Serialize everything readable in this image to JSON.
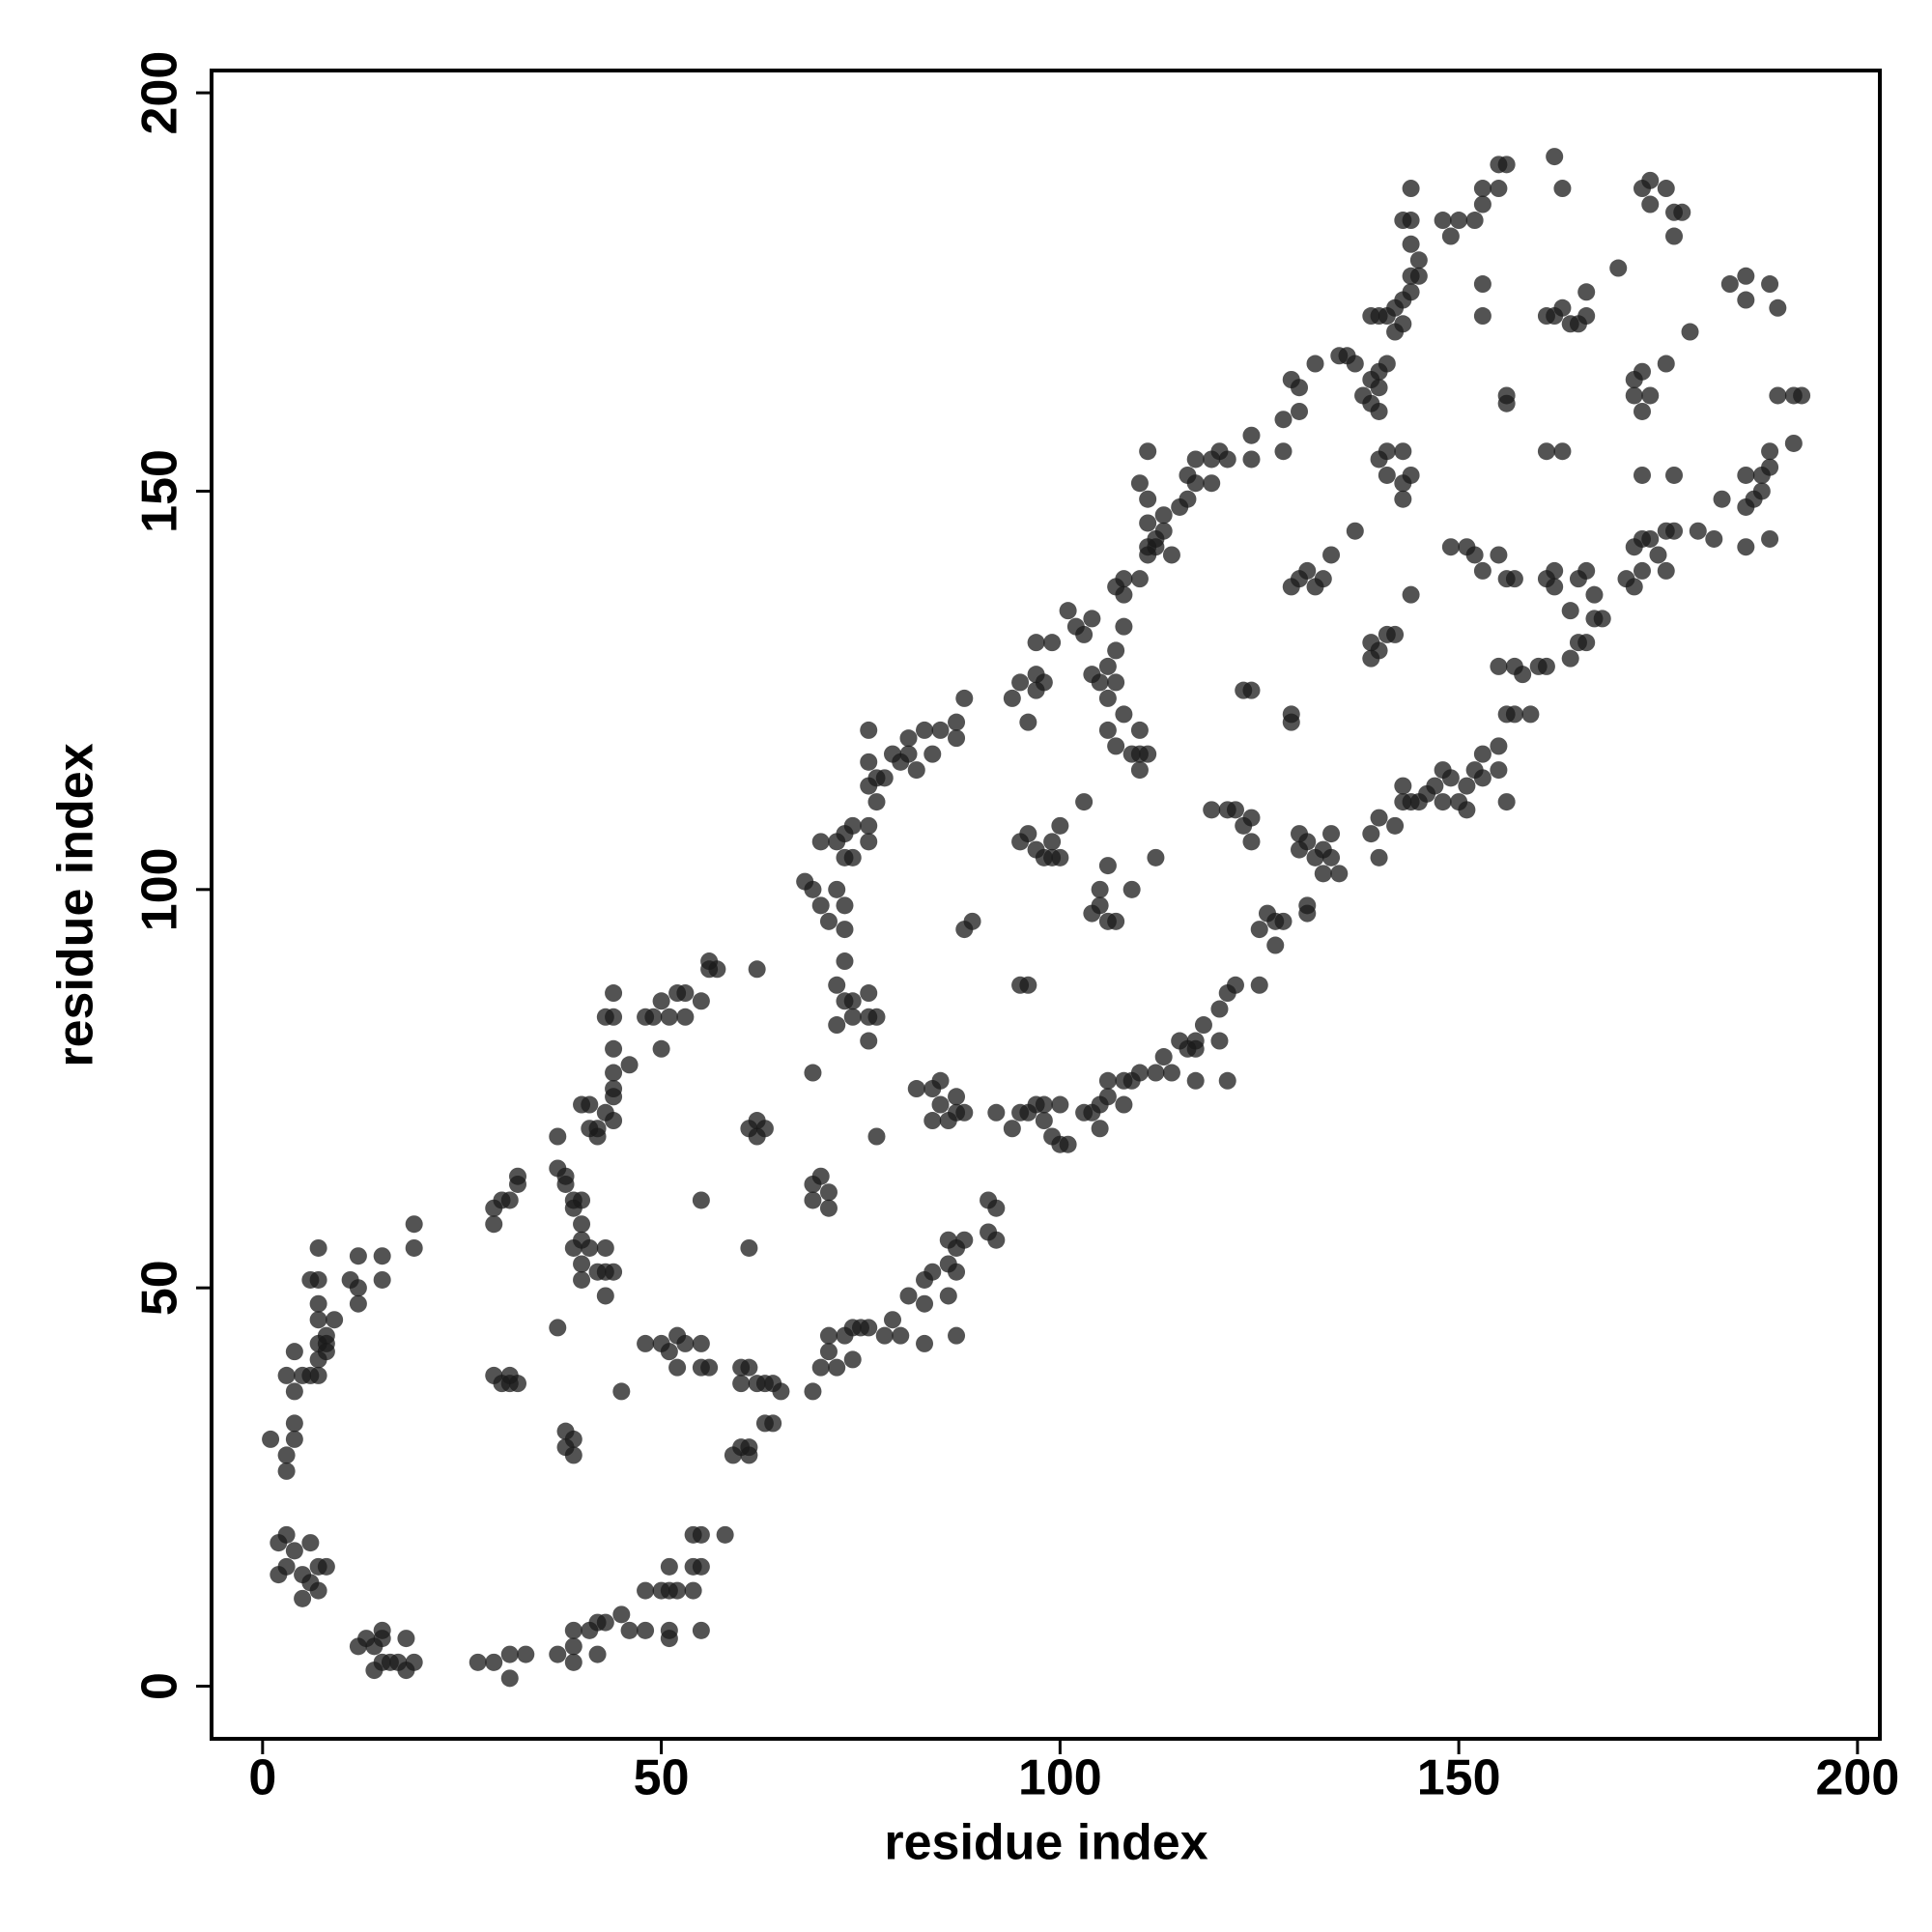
{
  "chart_data": {
    "type": "scatter",
    "xlabel": "residue index",
    "ylabel": "residue index",
    "xlim": [
      -6.4,
      202.8
    ],
    "ylim": [
      -6.6,
      202.8
    ],
    "xticks": [
      0,
      50,
      100,
      150,
      200
    ],
    "yticks": [
      0,
      50,
      100,
      150,
      200
    ],
    "color": "#1a1a1a",
    "x": [
      1,
      3,
      3,
      4,
      4,
      4,
      3,
      4,
      5,
      6,
      7,
      7,
      8,
      8,
      9,
      7,
      7,
      6,
      7,
      7,
      7,
      8,
      2,
      3,
      3,
      2,
      4,
      5,
      6,
      5,
      7,
      6,
      7,
      8,
      12,
      13,
      14,
      15,
      15,
      14,
      15,
      16,
      18,
      18,
      19,
      17,
      11,
      12,
      12,
      12,
      15,
      15,
      19,
      19,
      27,
      29,
      31,
      31,
      33,
      37,
      39,
      39,
      39,
      41,
      42,
      42,
      43,
      45,
      46,
      48,
      48,
      50,
      51,
      51,
      52,
      51,
      51,
      54,
      54,
      55,
      55,
      54,
      55,
      58,
      29,
      29,
      30,
      31,
      32,
      32,
      37,
      38,
      37,
      38,
      39,
      40,
      39,
      40,
      37,
      38,
      38,
      39,
      39,
      29,
      30,
      31,
      32,
      31,
      39,
      40,
      41,
      40,
      40,
      43,
      42,
      43,
      44,
      43,
      40,
      41,
      41,
      42,
      42,
      43,
      44,
      44,
      44,
      44,
      44,
      44,
      44,
      43,
      46,
      45,
      48,
      50,
      51,
      52,
      53,
      52,
      55,
      56,
      55,
      55,
      48,
      49,
      50,
      50,
      51,
      52,
      53,
      53,
      55,
      56,
      56,
      57,
      59,
      60,
      61,
      61,
      60,
      61,
      62,
      60,
      63,
      64,
      65,
      63,
      64,
      61,
      61,
      62,
      62,
      62,
      63,
      69,
      70,
      71,
      71,
      72,
      73,
      74,
      75,
      74,
      76,
      78,
      79,
      80,
      81,
      83,
      83,
      84,
      83,
      86,
      86,
      86,
      87,
      87,
      88,
      87,
      91,
      92,
      91,
      92,
      69,
      69,
      70,
      71,
      71,
      69,
      72,
      73,
      72,
      74,
      74,
      76,
      76,
      77,
      76,
      73,
      68,
      69,
      70,
      71,
      72,
      73,
      73,
      73,
      72,
      73,
      74,
      74,
      76,
      76,
      77,
      76,
      76,
      77,
      78,
      76,
      79,
      80,
      81,
      81,
      82,
      83,
      84,
      85,
      87,
      87,
      88,
      70,
      77,
      82,
      84,
      85,
      85,
      84,
      87,
      87,
      88,
      86,
      88,
      89,
      94,
      95,
      97,
      97,
      96,
      98,
      99,
      97,
      94,
      95,
      96,
      97,
      98,
      98,
      99,
      100,
      100,
      101,
      95,
      96,
      95,
      96,
      97,
      98,
      99,
      99,
      100,
      100,
      92,
      103,
      104,
      105,
      105,
      106,
      106,
      108,
      108,
      109,
      110,
      112,
      113,
      114,
      115,
      116,
      117,
      117,
      117,
      118,
      120,
      120,
      121,
      121,
      122,
      125,
      103,
      104,
      105,
      105,
      106,
      107,
      109,
      106,
      106,
      107,
      108,
      109,
      110,
      110,
      110,
      111,
      104,
      103,
      104,
      105,
      106,
      107,
      107,
      108,
      106,
      101,
      102,
      107,
      108,
      108,
      112,
      110,
      111,
      111,
      111,
      112,
      112,
      113,
      113,
      111,
      110,
      111,
      114,
      115,
      116,
      116,
      117,
      117,
      119,
      119,
      120,
      121,
      122,
      123,
      124,
      124,
      121,
      119,
      125,
      126,
      127,
      127,
      128,
      130,
      130,
      131,
      132,
      133,
      134,
      133,
      134,
      135,
      131,
      131,
      123,
      124,
      129,
      129,
      129,
      130,
      131,
      132,
      133,
      134,
      128,
      128,
      130,
      130,
      132,
      129,
      124,
      124,
      135,
      136,
      137,
      138,
      139,
      140,
      139,
      140,
      140,
      141,
      139,
      140,
      141,
      142,
      143,
      143,
      144,
      144,
      144,
      144,
      144,
      143,
      145,
      145,
      142,
      137,
      139,
      139,
      140,
      141,
      142,
      140,
      141,
      141,
      143,
      143,
      144,
      143,
      144,
      139,
      140,
      140,
      142,
      143,
      143,
      144,
      145,
      146,
      147,
      148,
      148,
      149,
      150,
      151,
      151,
      152,
      153,
      153,
      155,
      155,
      156,
      156,
      157,
      159,
      148,
      149,
      150,
      152,
      153,
      153,
      155,
      156,
      155,
      153,
      153,
      149,
      151,
      152,
      153,
      155,
      156,
      157,
      155,
      157,
      156,
      156,
      158,
      160,
      161,
      161,
      162,
      162,
      165,
      166,
      164,
      165,
      164,
      166,
      167,
      167,
      168,
      166,
      161,
      163,
      161,
      162,
      163,
      164,
      165,
      166,
      162,
      163,
      170,
      171,
      172,
      173,
      172,
      173,
      174,
      175,
      176,
      177,
      176,
      173,
      177,
      172,
      172,
      173,
      174,
      173,
      176,
      173,
      174,
      174,
      176,
      177,
      178,
      177,
      179,
      180,
      182,
      183,
      184,
      186,
      186,
      186,
      187,
      186,
      188,
      188,
      189,
      189,
      189,
      190,
      190,
      192,
      192,
      193,
      186,
      189
    ],
    "values": [
      31,
      29,
      27,
      31,
      33,
      37,
      39,
      42,
      39,
      39,
      41,
      43,
      42,
      44,
      46,
      46,
      48,
      51,
      51,
      55,
      39,
      43,
      18,
      19,
      15,
      14,
      17,
      14,
      13,
      11,
      12,
      18,
      15,
      15,
      5,
      6,
      5,
      6,
      7,
      2,
      3,
      3,
      6,
      2,
      3,
      3,
      51,
      50,
      48,
      54,
      54,
      51,
      55,
      58,
      3,
      3,
      1,
      4,
      4,
      4,
      5,
      3,
      7,
      7,
      4,
      8,
      8,
      9,
      7,
      7,
      12,
      12,
      15,
      12,
      12,
      7,
      6,
      12,
      15,
      15,
      19,
      19,
      7,
      19,
      58,
      60,
      61,
      61,
      63,
      64,
      65,
      64,
      69,
      63,
      61,
      61,
      60,
      58,
      45,
      32,
      30,
      31,
      29,
      39,
      38,
      39,
      38,
      38,
      55,
      56,
      55,
      53,
      51,
      55,
      52,
      52,
      52,
      49,
      73,
      73,
      70,
      70,
      69,
      72,
      71,
      74,
      75,
      77,
      80,
      84,
      87,
      84,
      78,
      37,
      43,
      43,
      42,
      44,
      43,
      40,
      40,
      40,
      43,
      61,
      84,
      84,
      80,
      86,
      84,
      87,
      87,
      84,
      86,
      90,
      91,
      90,
      29,
      30,
      29,
      30,
      38,
      40,
      38,
      40,
      38,
      38,
      37,
      33,
      33,
      55,
      70,
      71,
      69,
      90,
      70,
      37,
      40,
      42,
      44,
      40,
      44,
      41,
      45,
      45,
      45,
      44,
      46,
      44,
      49,
      43,
      48,
      52,
      51,
      49,
      53,
      56,
      52,
      55,
      56,
      44,
      57,
      56,
      61,
      60,
      61,
      63,
      64,
      62,
      60,
      77,
      83,
      86,
      88,
      84,
      86,
      87,
      84,
      84,
      81,
      91,
      101,
      100,
      98,
      96,
      100,
      98,
      95,
      104,
      106,
      107,
      108,
      104,
      106,
      108,
      111,
      113,
      116,
      114,
      114,
      120,
      117,
      116,
      117,
      119,
      115,
      120,
      117,
      120,
      119,
      121,
      124,
      106,
      69,
      75,
      75,
      76,
      73,
      71,
      72,
      74,
      72,
      71,
      95,
      96,
      124,
      126,
      125,
      127,
      121,
      126,
      131,
      131,
      70,
      72,
      72,
      73,
      71,
      73,
      69,
      68,
      73,
      68,
      88,
      88,
      106,
      107,
      105,
      104,
      106,
      104,
      108,
      104,
      72,
      72,
      72,
      70,
      73,
      74,
      76,
      73,
      76,
      76,
      77,
      77,
      79,
      77,
      81,
      80,
      80,
      81,
      76,
      83,
      81,
      85,
      87,
      76,
      88,
      88,
      111,
      97,
      98,
      100,
      96,
      96,
      100,
      103,
      120,
      118,
      122,
      117,
      120,
      117,
      115,
      117,
      134,
      132,
      127,
      126,
      128,
      126,
      130,
      133,
      124,
      135,
      133,
      138,
      139,
      137,
      104,
      139,
      142,
      146,
      143,
      144,
      143,
      145,
      147,
      149,
      151,
      155,
      142,
      148,
      149,
      152,
      151,
      154,
      154,
      151,
      155,
      154,
      110,
      108,
      109,
      106,
      110,
      110,
      95,
      97,
      96,
      93,
      96,
      105,
      107,
      106,
      104,
      105,
      104,
      102,
      107,
      102,
      98,
      97,
      125,
      125,
      122,
      121,
      138,
      139,
      140,
      138,
      139,
      142,
      155,
      159,
      160,
      163,
      166,
      164,
      157,
      154,
      167,
      167,
      166,
      162,
      161,
      160,
      164,
      165,
      163,
      166,
      172,
      172,
      172,
      170,
      171,
      174,
      175,
      177,
      181,
      184,
      188,
      184,
      177,
      179,
      173,
      145,
      129,
      131,
      130,
      132,
      132,
      154,
      155,
      152,
      155,
      151,
      152,
      149,
      137,
      107,
      109,
      104,
      108,
      111,
      113,
      111,
      111,
      112,
      113,
      115,
      111,
      114,
      111,
      113,
      110,
      115,
      117,
      114,
      115,
      118,
      122,
      111,
      122,
      122,
      184,
      182,
      184,
      184,
      186,
      188,
      191,
      191,
      188,
      176,
      172,
      143,
      143,
      142,
      140,
      142,
      139,
      139,
      128,
      128,
      161,
      162,
      127,
      128,
      128,
      139,
      138,
      140,
      139,
      140,
      135,
      131,
      129,
      131,
      134,
      137,
      134,
      175,
      155,
      155,
      172,
      172,
      173,
      171,
      171,
      172,
      192,
      188,
      178,
      139,
      138,
      140,
      143,
      144,
      144,
      142,
      145,
      145,
      140,
      152,
      152,
      162,
      164,
      165,
      162,
      160,
      166,
      188,
      189,
      186,
      188,
      185,
      185,
      182,
      170,
      145,
      144,
      149,
      176,
      177,
      174,
      148,
      149,
      143,
      150,
      152,
      155,
      153,
      176,
      173,
      162,
      156,
      162,
      162,
      152,
      144
    ]
  }
}
